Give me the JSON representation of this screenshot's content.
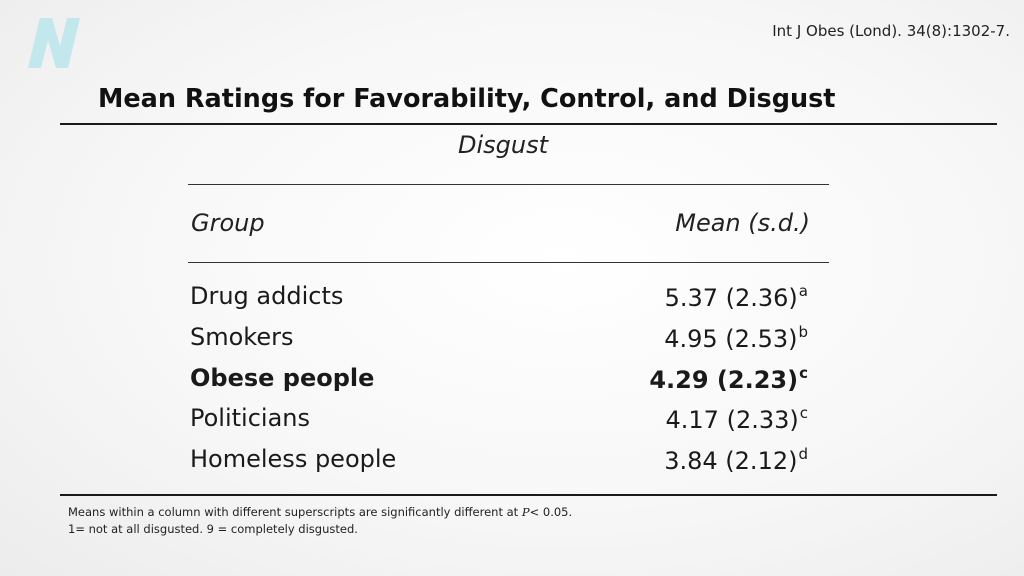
{
  "citation": "Int J Obes (Lond). 34(8):1302-7.",
  "logo": {
    "icon": "nutritionfacts-n-logo",
    "color": "#bfe6ec"
  },
  "title": "Mean Ratings for Favorability, Control, and Disgust",
  "section": "Disgust",
  "columns": {
    "group": "Group",
    "mean": "Mean (s.d.)"
  },
  "rows": [
    {
      "group": "Drug addicts",
      "mean": "5.37 (2.36)",
      "sup": "a",
      "bold": false
    },
    {
      "group": "Smokers",
      "mean": "4.95 (2.53)",
      "sup": "b",
      "bold": false
    },
    {
      "group": "Obese people",
      "mean": "4.29 (2.23)",
      "sup": "c",
      "bold": true
    },
    {
      "group": "Politicians",
      "mean": "4.17 (2.33)",
      "sup": "c",
      "bold": false
    },
    {
      "group": "Homeless people",
      "mean": "3.84 (2.12)",
      "sup": "d",
      "bold": false
    }
  ],
  "footnotes": {
    "line1_prefix": "Means within a column with different superscripts are significantly different at ",
    "line1_p": "P",
    "line1_suffix": "< 0.05.",
    "line2": "1= not at all disgusted. 9 = completely disgusted."
  }
}
